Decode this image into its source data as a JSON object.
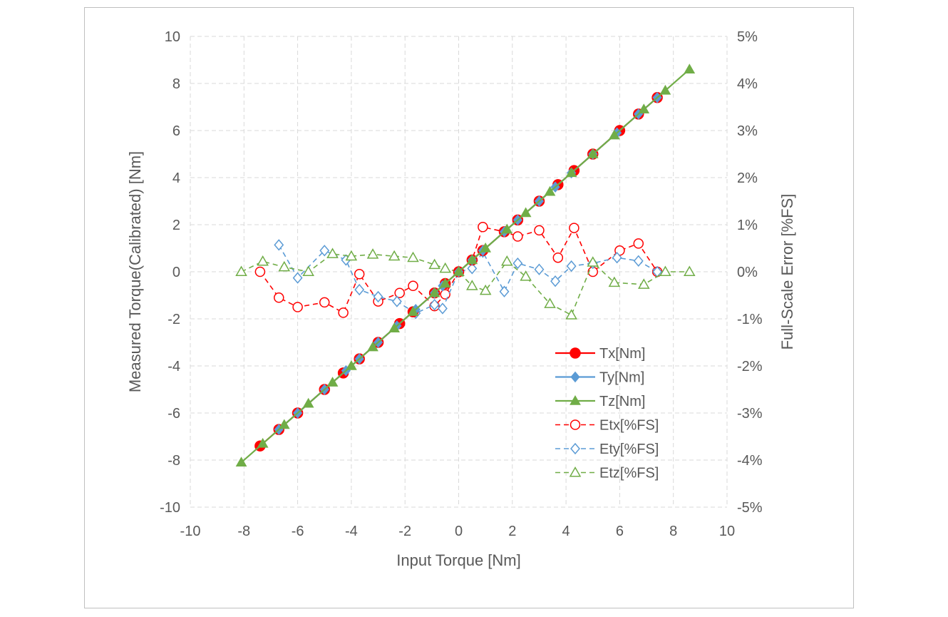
{
  "chart_data": {
    "type": "line",
    "title": "",
    "xlabel": "Input Torque [Nm]",
    "ylabel": "Measured Torque(Calibrated) [Nm]",
    "y2label": "Full-Scale Error [%FS]",
    "xlim": [
      -10,
      10
    ],
    "ylim": [
      -10,
      10
    ],
    "y2lim": [
      -5,
      5
    ],
    "x_ticks": [
      "-10",
      "-8",
      "-6",
      "-4",
      "-2",
      "0",
      "2",
      "4",
      "6",
      "8",
      "10"
    ],
    "y_ticks": [
      "10",
      "8",
      "6",
      "4",
      "2",
      "0",
      "-2",
      "-4",
      "-6",
      "-8",
      "-10"
    ],
    "y2_ticks": [
      "5%",
      "4%",
      "3%",
      "2%",
      "1%",
      "0%",
      "-1%",
      "-2%",
      "-3%",
      "-4%",
      "-5%"
    ],
    "grid": true,
    "legend_position": "bottom-right",
    "series": [
      {
        "name": "Tx[Nm]",
        "axis": "left",
        "style": "solid",
        "marker": "circle-filled",
        "color": "#ff0000",
        "points": [
          [
            -7.4,
            -7.4
          ],
          [
            -6.7,
            -6.7
          ],
          [
            -6.0,
            -6.0
          ],
          [
            -5.0,
            -5.0
          ],
          [
            -4.3,
            -4.3
          ],
          [
            -3.7,
            -3.7
          ],
          [
            -3.0,
            -3.0
          ],
          [
            -2.2,
            -2.2
          ],
          [
            -1.7,
            -1.7
          ],
          [
            -0.9,
            -0.9
          ],
          [
            -0.5,
            -0.5
          ],
          [
            0,
            0
          ],
          [
            0.5,
            0.5
          ],
          [
            0.9,
            0.9
          ],
          [
            1.7,
            1.7
          ],
          [
            2.2,
            2.2
          ],
          [
            3.0,
            3.0
          ],
          [
            3.7,
            3.7
          ],
          [
            4.3,
            4.3
          ],
          [
            5.0,
            5.0
          ],
          [
            6.0,
            6.0
          ],
          [
            6.7,
            6.7
          ],
          [
            7.4,
            7.4
          ]
        ]
      },
      {
        "name": "Ty[Nm]",
        "axis": "left",
        "style": "solid",
        "marker": "diamond-filled",
        "color": "#5b9bd5",
        "points": [
          [
            -6.7,
            -6.7
          ],
          [
            -6.0,
            -6.0
          ],
          [
            -5.0,
            -5.0
          ],
          [
            -4.2,
            -4.2
          ],
          [
            -3.7,
            -3.7
          ],
          [
            -3.0,
            -3.0
          ],
          [
            -2.3,
            -2.3
          ],
          [
            -1.6,
            -1.6
          ],
          [
            -0.9,
            -0.9
          ],
          [
            -0.6,
            -0.6
          ],
          [
            0,
            0
          ],
          [
            0.5,
            0.5
          ],
          [
            0.9,
            0.9
          ],
          [
            1.7,
            1.7
          ],
          [
            2.2,
            2.2
          ],
          [
            3.0,
            3.0
          ],
          [
            3.6,
            3.6
          ],
          [
            4.2,
            4.2
          ],
          [
            5.0,
            5.0
          ],
          [
            5.9,
            5.9
          ],
          [
            6.7,
            6.7
          ],
          [
            7.4,
            7.4
          ]
        ]
      },
      {
        "name": "Tz[Nm]",
        "axis": "left",
        "style": "solid",
        "marker": "triangle-filled",
        "color": "#70ad47",
        "points": [
          [
            -8.1,
            -8.1
          ],
          [
            -7.3,
            -7.3
          ],
          [
            -6.5,
            -6.5
          ],
          [
            -5.6,
            -5.6
          ],
          [
            -4.7,
            -4.7
          ],
          [
            -4.0,
            -4.0
          ],
          [
            -3.2,
            -3.2
          ],
          [
            -2.4,
            -2.4
          ],
          [
            -1.7,
            -1.7
          ],
          [
            -0.9,
            -0.9
          ],
          [
            -0.5,
            -0.5
          ],
          [
            0,
            0
          ],
          [
            0.5,
            0.5
          ],
          [
            1.0,
            1.0
          ],
          [
            1.8,
            1.8
          ],
          [
            2.5,
            2.5
          ],
          [
            3.4,
            3.4
          ],
          [
            4.2,
            4.2
          ],
          [
            5.0,
            5.0
          ],
          [
            5.8,
            5.8
          ],
          [
            6.9,
            6.9
          ],
          [
            7.7,
            7.7
          ],
          [
            8.6,
            8.6
          ]
        ]
      },
      {
        "name": "Etx[%FS]",
        "axis": "right",
        "style": "dashed",
        "marker": "circle-open",
        "color": "#ff0000",
        "points": [
          [
            -7.4,
            0.0
          ],
          [
            -6.7,
            -0.55
          ],
          [
            -6.0,
            -0.75
          ],
          [
            -5.0,
            -0.65
          ],
          [
            -4.3,
            -0.87
          ],
          [
            -3.7,
            -0.05
          ],
          [
            -3.0,
            -0.63
          ],
          [
            -2.2,
            -0.45
          ],
          [
            -1.7,
            -0.3
          ],
          [
            -0.9,
            -0.73
          ],
          [
            -0.5,
            -0.48
          ],
          [
            0,
            0
          ],
          [
            0.5,
            0.25
          ],
          [
            0.9,
            0.95
          ],
          [
            1.7,
            0.85
          ],
          [
            2.2,
            0.75
          ],
          [
            3.0,
            0.88
          ],
          [
            3.7,
            0.3
          ],
          [
            4.3,
            0.93
          ],
          [
            5.0,
            0.0
          ],
          [
            6.0,
            0.45
          ],
          [
            6.7,
            0.6
          ],
          [
            7.4,
            0.0
          ]
        ]
      },
      {
        "name": "Ety[%FS]",
        "axis": "right",
        "style": "dashed",
        "marker": "diamond-open",
        "color": "#5b9bd5",
        "points": [
          [
            -6.7,
            0.57
          ],
          [
            -6.0,
            -0.13
          ],
          [
            -5.0,
            0.45
          ],
          [
            -4.2,
            0.25
          ],
          [
            -3.7,
            -0.38
          ],
          [
            -3.0,
            -0.53
          ],
          [
            -2.3,
            -0.63
          ],
          [
            -1.6,
            -0.88
          ],
          [
            -0.9,
            -0.7
          ],
          [
            -0.6,
            -0.78
          ],
          [
            0,
            0
          ],
          [
            0.5,
            0.07
          ],
          [
            0.9,
            0.42
          ],
          [
            1.7,
            -0.42
          ],
          [
            2.2,
            0.18
          ],
          [
            3.0,
            0.05
          ],
          [
            3.6,
            -0.2
          ],
          [
            4.2,
            0.12
          ],
          [
            5.0,
            0.18
          ],
          [
            5.9,
            0.3
          ],
          [
            6.7,
            0.23
          ],
          [
            7.4,
            0.0
          ]
        ]
      },
      {
        "name": "Etz[%FS]",
        "axis": "right",
        "style": "dashed",
        "marker": "triangle-open",
        "color": "#70ad47",
        "points": [
          [
            -8.1,
            0.0
          ],
          [
            -7.3,
            0.22
          ],
          [
            -6.5,
            0.1
          ],
          [
            -5.6,
            0.0
          ],
          [
            -4.7,
            0.38
          ],
          [
            -4.0,
            0.33
          ],
          [
            -3.2,
            0.37
          ],
          [
            -2.4,
            0.33
          ],
          [
            -1.7,
            0.3
          ],
          [
            -0.9,
            0.15
          ],
          [
            -0.5,
            0.07
          ],
          [
            0,
            0
          ],
          [
            0.5,
            -0.3
          ],
          [
            1.0,
            -0.4
          ],
          [
            1.8,
            0.22
          ],
          [
            2.5,
            -0.1
          ],
          [
            3.4,
            -0.68
          ],
          [
            4.2,
            -0.92
          ],
          [
            5.0,
            0.2
          ],
          [
            5.8,
            -0.23
          ],
          [
            6.9,
            -0.27
          ],
          [
            7.7,
            0.0
          ],
          [
            8.6,
            0.0
          ]
        ]
      }
    ]
  }
}
